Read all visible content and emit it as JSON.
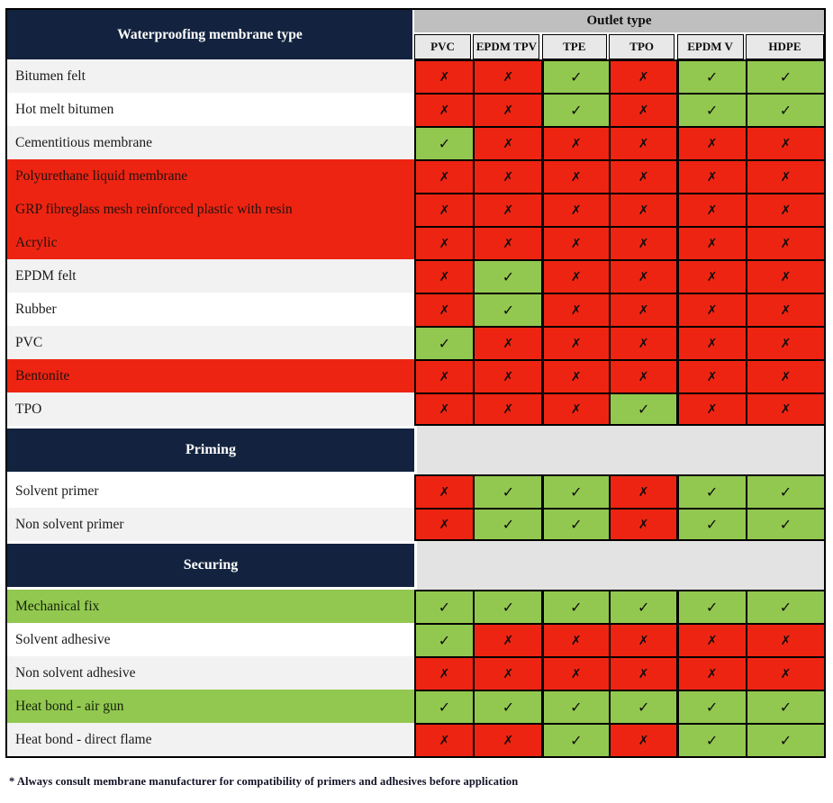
{
  "chart_data": {
    "type": "table",
    "corner_header": "Waterproofing membrane type",
    "column_group_header": "Outlet type",
    "columns": [
      "PVC",
      "EPDM TPV",
      "TPE",
      "TPO",
      "EPDM V",
      "HDPE"
    ],
    "rows": [
      {
        "kind": "data",
        "label": "Bitumen felt",
        "label_style": "stripe",
        "values": [
          "no",
          "no",
          "yes",
          "no",
          "yes",
          "yes"
        ]
      },
      {
        "kind": "data",
        "label": "Hot melt bitumen",
        "label_style": "white",
        "values": [
          "no",
          "no",
          "yes",
          "no",
          "yes",
          "yes"
        ]
      },
      {
        "kind": "data",
        "label": "Cementitious membrane",
        "label_style": "stripe",
        "values": [
          "yes",
          "no",
          "no",
          "no",
          "no",
          "no"
        ]
      },
      {
        "kind": "data",
        "label": "Polyurethane liquid membrane",
        "label_style": "red",
        "values": [
          "no",
          "no",
          "no",
          "no",
          "no",
          "no"
        ]
      },
      {
        "kind": "data",
        "label": "GRP fibreglass mesh reinforced plastic with resin",
        "label_style": "red",
        "values": [
          "no",
          "no",
          "no",
          "no",
          "no",
          "no"
        ]
      },
      {
        "kind": "data",
        "label": "Acrylic",
        "label_style": "red",
        "values": [
          "no",
          "no",
          "no",
          "no",
          "no",
          "no"
        ]
      },
      {
        "kind": "data",
        "label": "EPDM felt",
        "label_style": "stripe",
        "values": [
          "no",
          "yes",
          "no",
          "no",
          "no",
          "no"
        ]
      },
      {
        "kind": "data",
        "label": "Rubber",
        "label_style": "white",
        "values": [
          "no",
          "yes",
          "no",
          "no",
          "no",
          "no"
        ]
      },
      {
        "kind": "data",
        "label": "PVC",
        "label_style": "stripe",
        "values": [
          "yes",
          "no",
          "no",
          "no",
          "no",
          "no"
        ]
      },
      {
        "kind": "data",
        "label": "Bentonite",
        "label_style": "red",
        "values": [
          "no",
          "no",
          "no",
          "no",
          "no",
          "no"
        ]
      },
      {
        "kind": "data",
        "label": "TPO",
        "label_style": "stripe",
        "values": [
          "no",
          "no",
          "no",
          "yes",
          "no",
          "no"
        ]
      },
      {
        "kind": "section",
        "label": "Priming"
      },
      {
        "kind": "data",
        "label": "Solvent primer",
        "label_style": "white",
        "values": [
          "no",
          "yes",
          "yes",
          "no",
          "yes",
          "yes"
        ]
      },
      {
        "kind": "data",
        "label": "Non solvent primer",
        "label_style": "stripe",
        "values": [
          "no",
          "yes",
          "yes",
          "no",
          "yes",
          "yes"
        ]
      },
      {
        "kind": "section",
        "label": "Securing"
      },
      {
        "kind": "data",
        "label": "Mechanical fix",
        "label_style": "green",
        "values": [
          "yes",
          "yes",
          "yes",
          "yes",
          "yes",
          "yes"
        ]
      },
      {
        "kind": "data",
        "label": "Solvent adhesive",
        "label_style": "white",
        "values": [
          "yes",
          "no",
          "no",
          "no",
          "no",
          "no"
        ]
      },
      {
        "kind": "data",
        "label": "Non solvent adhesive",
        "label_style": "stripe",
        "values": [
          "no",
          "no",
          "no",
          "no",
          "no",
          "no"
        ]
      },
      {
        "kind": "data",
        "label": "Heat bond - air gun",
        "label_style": "green",
        "values": [
          "yes",
          "yes",
          "yes",
          "yes",
          "yes",
          "yes"
        ]
      },
      {
        "kind": "data",
        "label": "Heat bond - direct flame",
        "label_style": "stripe",
        "values": [
          "no",
          "no",
          "yes",
          "no",
          "yes",
          "yes"
        ]
      }
    ],
    "footnote": "* Always consult membrane manufacturer for compatibility of primers and adhesives before application"
  },
  "marks": {
    "yes": "✓",
    "no": "✗"
  },
  "colors": {
    "navy": "#13233f",
    "red": "#ee2412",
    "green": "#92c850",
    "header_gray": "#bfbfbf",
    "subheader_gray": "#e8e8e8",
    "section_gray": "#e4e3e3",
    "stripe": "#f2f2f2"
  }
}
